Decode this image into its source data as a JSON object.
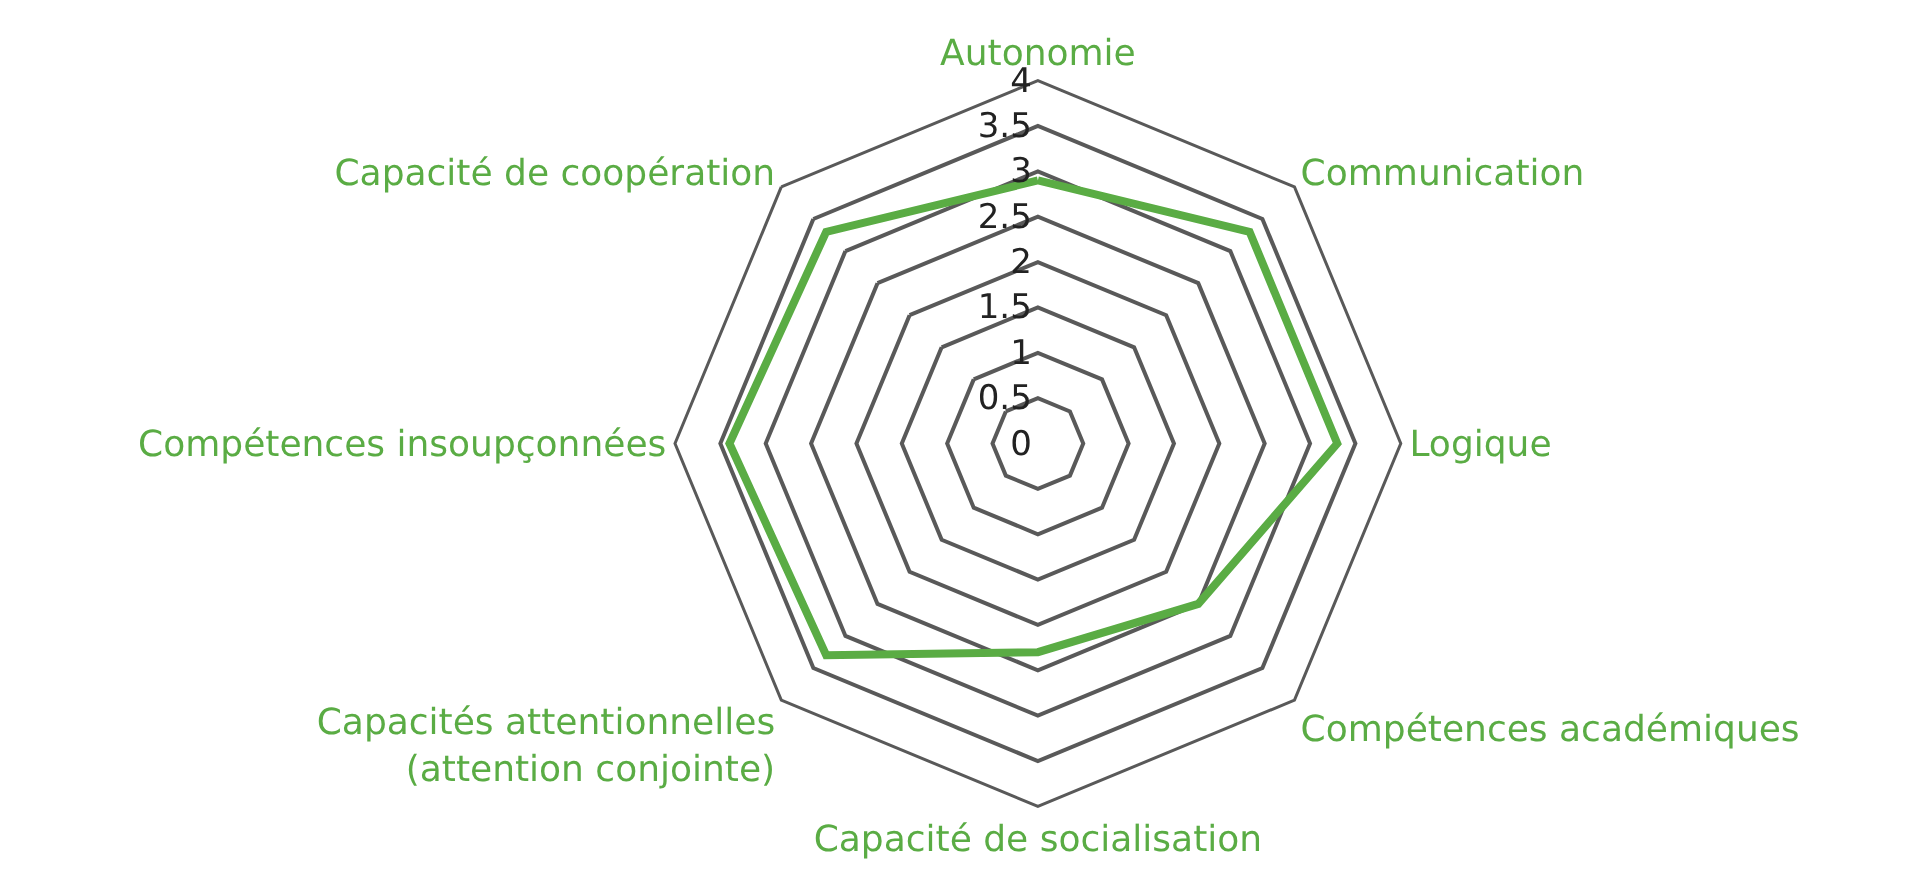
{
  "chart_data": {
    "type": "radar",
    "categories": [
      "Autonomie",
      "Communication",
      "Logique",
      "Compétences académiques",
      "Capacité de socialisation",
      "Capacités attentionnelles\n(attention conjointe)",
      "Compétences insoupçonnées",
      "Capacité de coopération"
    ],
    "series": [
      {
        "color": "#5aac44",
        "values": [
          2.9,
          3.3,
          3.3,
          2.5,
          2.3,
          3.3,
          3.4,
          3.3
        ]
      }
    ],
    "ylim": [
      0,
      4
    ],
    "yticks": [
      0,
      0.5,
      1,
      1.5,
      2,
      2.5,
      3,
      3.5,
      4
    ],
    "grid": true,
    "marker": "none"
  }
}
